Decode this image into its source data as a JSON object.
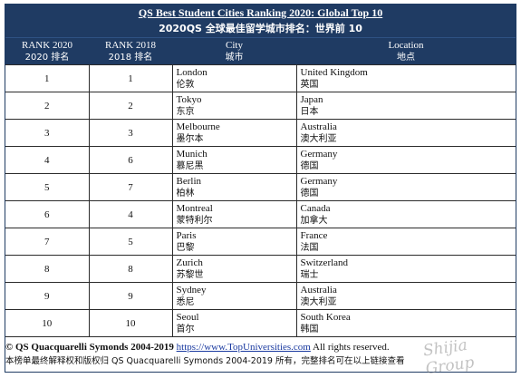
{
  "title": {
    "en": "QS Best Student Cities Ranking 2020: Global Top 10",
    "cn": "2020QS 全球最佳留学城市排名：世界前 10"
  },
  "headers": {
    "rank2020": {
      "en": "RANK 2020",
      "cn": "2020 排名"
    },
    "rank2018": {
      "en": "RANK 2018",
      "cn": "2018 排名"
    },
    "city": {
      "en": "City",
      "cn": "城市"
    },
    "location": {
      "en": "Location",
      "cn": "地点"
    }
  },
  "rows": [
    {
      "rank2020": "1",
      "rank2018": "1",
      "city_en": "London",
      "city_cn": "伦敦",
      "loc_en": "United Kingdom",
      "loc_cn": "英国"
    },
    {
      "rank2020": "2",
      "rank2018": "2",
      "city_en": "Tokyo",
      "city_cn": "东京",
      "loc_en": "Japan",
      "loc_cn": "日本"
    },
    {
      "rank2020": "3",
      "rank2018": "3",
      "city_en": "Melbourne",
      "city_cn": "墨尔本",
      "loc_en": "Australia",
      "loc_cn": "澳大利亚"
    },
    {
      "rank2020": "4",
      "rank2018": "6",
      "city_en": "Munich",
      "city_cn": "慕尼黑",
      "loc_en": "Germany",
      "loc_cn": "德国"
    },
    {
      "rank2020": "5",
      "rank2018": "7",
      "city_en": "Berlin",
      "city_cn": "柏林",
      "loc_en": "Germany",
      "loc_cn": "德国"
    },
    {
      "rank2020": "6",
      "rank2018": "4",
      "city_en": "Montreal",
      "city_cn": "蒙特利尔",
      "loc_en": "Canada",
      "loc_cn": "加拿大"
    },
    {
      "rank2020": "7",
      "rank2018": "5",
      "city_en": "Paris",
      "city_cn": "巴黎",
      "loc_en": "France",
      "loc_cn": "法国"
    },
    {
      "rank2020": "8",
      "rank2018": "8",
      "city_en": "Zurich",
      "city_cn": "苏黎世",
      "loc_en": "Switzerland",
      "loc_cn": "瑞士"
    },
    {
      "rank2020": "9",
      "rank2018": "9",
      "city_en": "Sydney",
      "city_cn": "悉尼",
      "loc_en": "Australia",
      "loc_cn": "澳大利亚"
    },
    {
      "rank2020": "10",
      "rank2018": "10",
      "city_en": "Seoul",
      "city_cn": "首尔",
      "loc_en": "South Korea",
      "loc_cn": "韩国"
    }
  ],
  "footer": {
    "copyright": "© QS Quacquarelli Symonds 2004-2019",
    "link": "https://www.TopUniversities.com",
    "rights": "All rights reserved.",
    "cn_note": "本榜单最终解释权和版权归 QS Quacquarelli Symonds 2004-2019 所有，完整排名可在以上链接查看"
  },
  "watermark": "Shijia Group"
}
